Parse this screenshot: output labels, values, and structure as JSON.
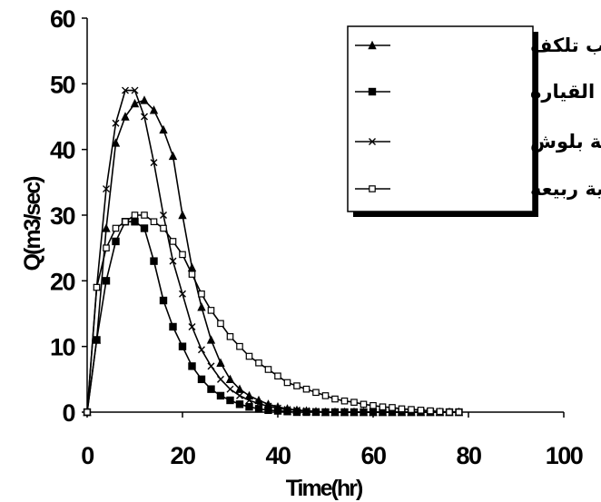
{
  "chart_data": {
    "type": "line",
    "xlabel": "Time(hr)",
    "ylabel": "Q(m3/sec)",
    "xlim": [
      0,
      100
    ],
    "ylim": [
      0,
      60
    ],
    "xticks": [
      0,
      20,
      40,
      60,
      80,
      100
    ],
    "yticks": [
      0,
      10,
      20,
      30,
      40,
      50,
      60
    ],
    "grid": false,
    "legend_position": "top-right",
    "series": [
      {
        "name": "جلية غب تلكف",
        "marker": "triangle",
        "x": [
          0,
          2,
          4,
          6,
          8,
          10,
          12,
          14,
          16,
          18,
          20,
          22,
          24,
          26,
          28,
          30,
          32,
          34,
          36,
          38,
          40,
          42,
          44,
          46,
          48,
          50,
          52,
          54,
          56,
          58,
          60,
          62,
          64,
          66,
          68,
          70,
          72,
          74,
          76,
          78
        ],
        "y": [
          0,
          11,
          28,
          41,
          45,
          47,
          47.5,
          46,
          43,
          39,
          30,
          22,
          16,
          11,
          7.5,
          5,
          3.5,
          2.5,
          1.8,
          1.2,
          0.8,
          0.5,
          0.3,
          0.2,
          0.1,
          0,
          0,
          0,
          0,
          0,
          0,
          0,
          0,
          0,
          0,
          0,
          0,
          0,
          0,
          0
        ]
      },
      {
        "name": "جليةشمل القيارة",
        "marker": "square-filled",
        "x": [
          0,
          2,
          4,
          6,
          8,
          10,
          12,
          14,
          16,
          18,
          20,
          22,
          24,
          26,
          28,
          30,
          32,
          34,
          36,
          38,
          40,
          42,
          44,
          46,
          48,
          50,
          52,
          54,
          56,
          58,
          60,
          62,
          64,
          66,
          68,
          70,
          72,
          74,
          76,
          78
        ],
        "y": [
          0,
          11,
          20,
          26,
          29,
          29,
          28,
          23,
          17,
          13,
          10,
          7,
          5,
          3.5,
          2.5,
          1.8,
          1.2,
          0.8,
          0.5,
          0.3,
          0.2,
          0.1,
          0,
          0,
          0,
          0,
          0,
          0,
          0,
          0,
          0,
          0,
          0,
          0,
          0,
          0,
          0,
          0,
          0,
          0
        ]
      },
      {
        "name": "جلية بلوش",
        "marker": "x",
        "x": [
          0,
          2,
          4,
          6,
          8,
          10,
          12,
          14,
          16,
          18,
          20,
          22,
          24,
          26,
          28,
          30,
          32,
          34,
          36,
          38,
          40,
          42,
          44,
          46,
          48,
          50,
          52,
          54,
          56,
          58,
          60,
          62,
          64,
          66,
          68,
          70,
          72,
          74,
          76,
          78
        ],
        "y": [
          0,
          19,
          34,
          44,
          49,
          49,
          45,
          38,
          30,
          23,
          18,
          13,
          9.5,
          7,
          5,
          3.5,
          2.5,
          1.8,
          1.3,
          0.9,
          0.6,
          0.4,
          0.3,
          0.2,
          0.1,
          0,
          0,
          0,
          0,
          0,
          0,
          0,
          0,
          0,
          0,
          0,
          0,
          0,
          0,
          0
        ]
      },
      {
        "name": "جلية ربيعة",
        "marker": "square-open",
        "x": [
          0,
          2,
          4,
          6,
          8,
          10,
          12,
          14,
          16,
          18,
          20,
          22,
          24,
          26,
          28,
          30,
          32,
          34,
          36,
          38,
          40,
          42,
          44,
          46,
          48,
          50,
          52,
          54,
          56,
          58,
          60,
          62,
          64,
          66,
          68,
          70,
          72,
          74,
          76,
          78
        ],
        "y": [
          0,
          19,
          25,
          28,
          29,
          30,
          30,
          29,
          28,
          26,
          24,
          21,
          18,
          15.5,
          13.5,
          11.5,
          10,
          8.5,
          7.5,
          6.5,
          5.5,
          4.5,
          4,
          3.5,
          3,
          2.5,
          2,
          1.7,
          1.5,
          1.2,
          1,
          0.8,
          0.7,
          0.5,
          0.4,
          0.3,
          0.2,
          0.1,
          0,
          0
        ]
      }
    ]
  }
}
